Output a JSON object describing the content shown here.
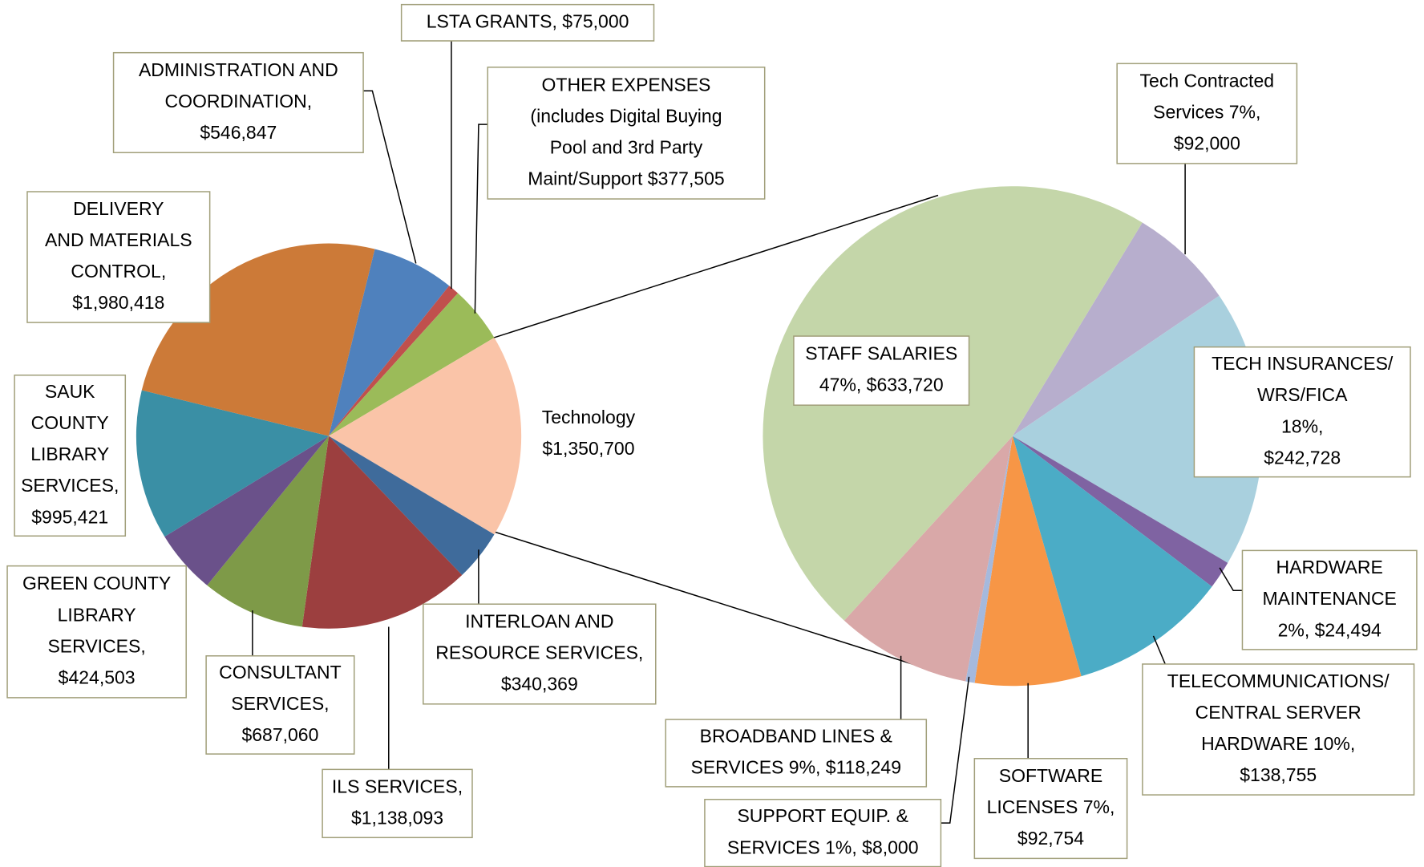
{
  "chart_data": [
    {
      "type": "pie",
      "values": [
        546847,
        75000,
        377505,
        1350700,
        340369,
        1138093,
        687060,
        424503,
        995421,
        1980418
      ],
      "value_labels": [
        [
          "ADMINISTRATION AND",
          "COORDINATION,",
          "$546,847"
        ],
        [
          "LSTA GRANTS,  $75,000"
        ],
        [
          "OTHER EXPENSES",
          "(includes Digital Buying",
          "Pool and 3rd Party",
          "Maint/Support  $377,505"
        ],
        [
          "Technology",
          "$1,350,700"
        ],
        [
          "INTERLOAN AND",
          "RESOURCE SERVICES,",
          "$340,369"
        ],
        [
          "ILS SERVICES,",
          "$1,138,093"
        ],
        [
          "CONSULTANT",
          "SERVICES,",
          "$687,060"
        ],
        [
          "GREEN COUNTY",
          "LIBRARY",
          "SERVICES,",
          "$424,503"
        ],
        [
          "SAUK",
          "COUNTY",
          "LIBRARY",
          "SERVICES,",
          "$995,421"
        ],
        [
          "DELIVERY",
          "AND MATERIALS",
          "CONTROL,",
          "$1,980,418"
        ]
      ],
      "colors": [
        "#4f81bd",
        "#c0504d",
        "#9bbb59",
        "#fac4a8",
        "#3f6b9b",
        "#9c3f3f",
        "#7e9a48",
        "#6a518a",
        "#3a8fa5",
        "#cc7a38"
      ]
    },
    {
      "type": "pie",
      "values": [
        92000,
        242728,
        24494,
        138755,
        92754,
        8000,
        118249,
        633720
      ],
      "value_labels": [
        [
          "Tech Contracted",
          "Services 7%,",
          "$92,000"
        ],
        [
          "TECH INSURANCES/",
          "WRS/FICA",
          "18%,",
          "$242,728"
        ],
        [
          "HARDWARE",
          "MAINTENANCE",
          "2%,  $24,494"
        ],
        [
          "TELECOMMUNICATIONS/",
          "CENTRAL SERVER",
          "HARDWARE 10%,",
          "$138,755"
        ],
        [
          "SOFTWARE",
          "LICENSES 7%,",
          "$92,754"
        ],
        [
          "SUPPORT EQUIP. &",
          "SERVICES 1%,  $8,000"
        ],
        [
          "BROADBAND LINES &",
          "SERVICES 9%,  $118,249"
        ],
        [
          "STAFF SALARIES",
          "47%,  $633,720"
        ]
      ],
      "colors": [
        "#b7aecd",
        "#a9d0de",
        "#7f63a2",
        "#4bacc6",
        "#f79646",
        "#a5b9dd",
        "#d9a8a8",
        "#c4d6a9"
      ]
    }
  ]
}
